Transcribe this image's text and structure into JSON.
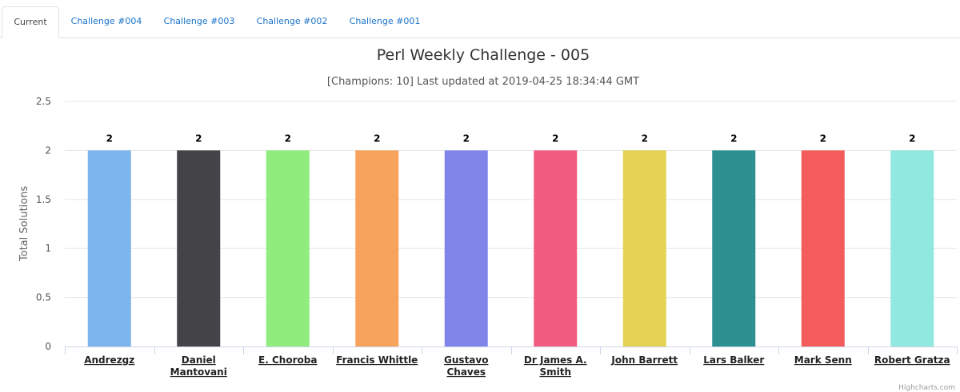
{
  "tabs": [
    {
      "label": "Current",
      "active": true
    },
    {
      "label": "Challenge #004",
      "active": false
    },
    {
      "label": "Challenge #003",
      "active": false
    },
    {
      "label": "Challenge #002",
      "active": false
    },
    {
      "label": "Challenge #001",
      "active": false
    }
  ],
  "credits": "Highcharts.com",
  "chart_data": {
    "type": "bar",
    "title": "Perl Weekly Challenge - 005",
    "subtitle": "[Champions: 10] Last updated at 2019-04-25 18:34:44 GMT",
    "xlabel": "",
    "ylabel": "Total Solutions",
    "ylim": [
      0,
      2.5
    ],
    "yticks": [
      "0",
      "0.5",
      "1",
      "1.5",
      "2",
      "2.5"
    ],
    "grid": true,
    "legend": "none",
    "data_labels": true,
    "categories": [
      "Andrezgz",
      "Daniel Mantovani",
      "E. Choroba",
      "Francis Whittle",
      "Gustavo Chaves",
      "Dr James A. Smith",
      "John Barrett",
      "Lars Balker",
      "Mark Senn",
      "Robert Gratza"
    ],
    "values": [
      2,
      2,
      2,
      2,
      2,
      2,
      2,
      2,
      2,
      2
    ],
    "colors": [
      "#7cb5ec",
      "#434348",
      "#90ed7d",
      "#f7a35c",
      "#8085e9",
      "#f15c80",
      "#e4d354",
      "#2b908f",
      "#f45b5b",
      "#91e8e1"
    ]
  }
}
